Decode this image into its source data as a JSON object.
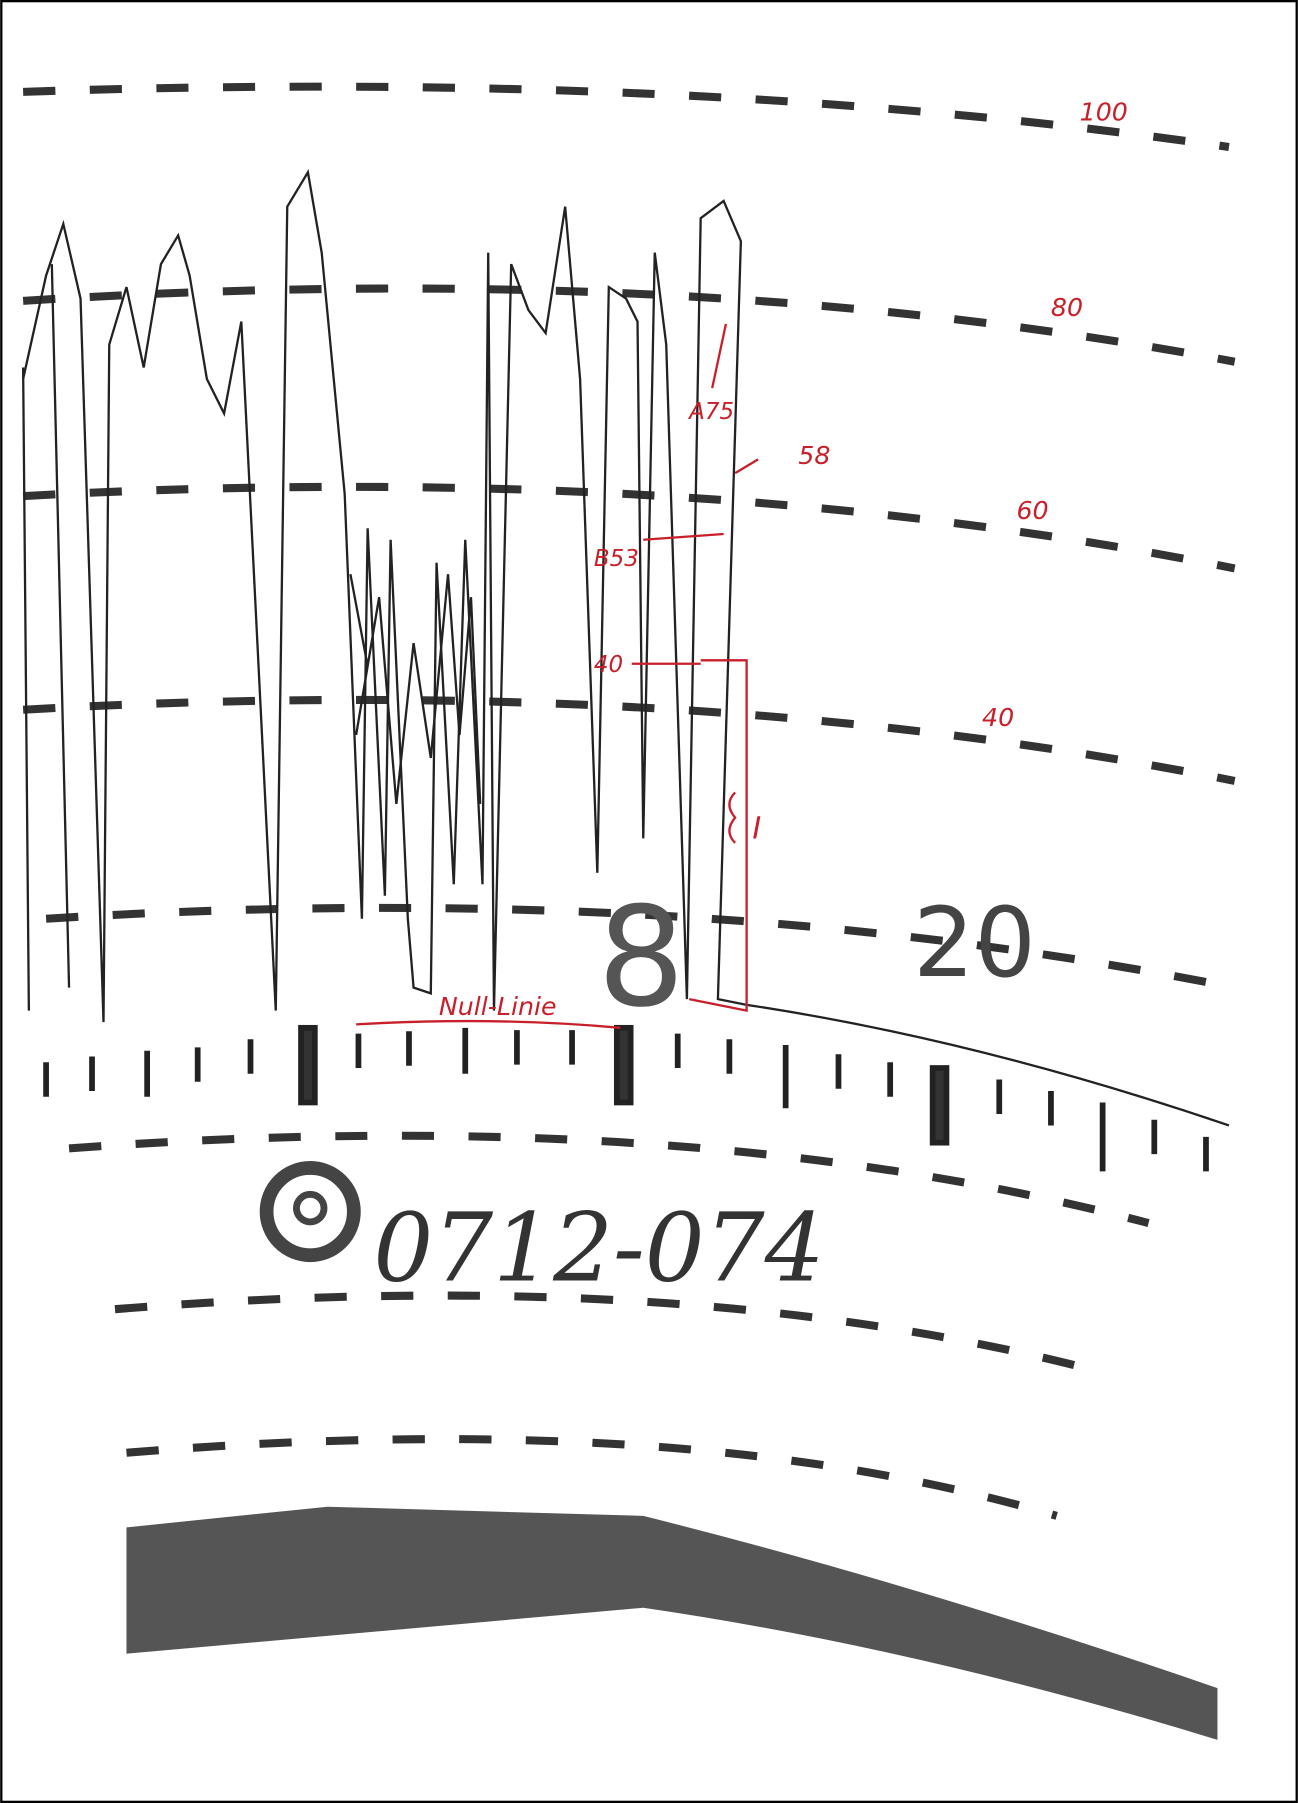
{
  "scale_labels": [
    "100",
    "80",
    "60",
    "40"
  ],
  "hour_label": "20",
  "hour_mark": "8",
  "annotations": {
    "peak": "A75",
    "reading_top": "58",
    "reading_mid": "B53",
    "reading_low": "40",
    "interval": "I",
    "zero_line": "Null-Linie"
  },
  "chart_id": "0712-074"
}
